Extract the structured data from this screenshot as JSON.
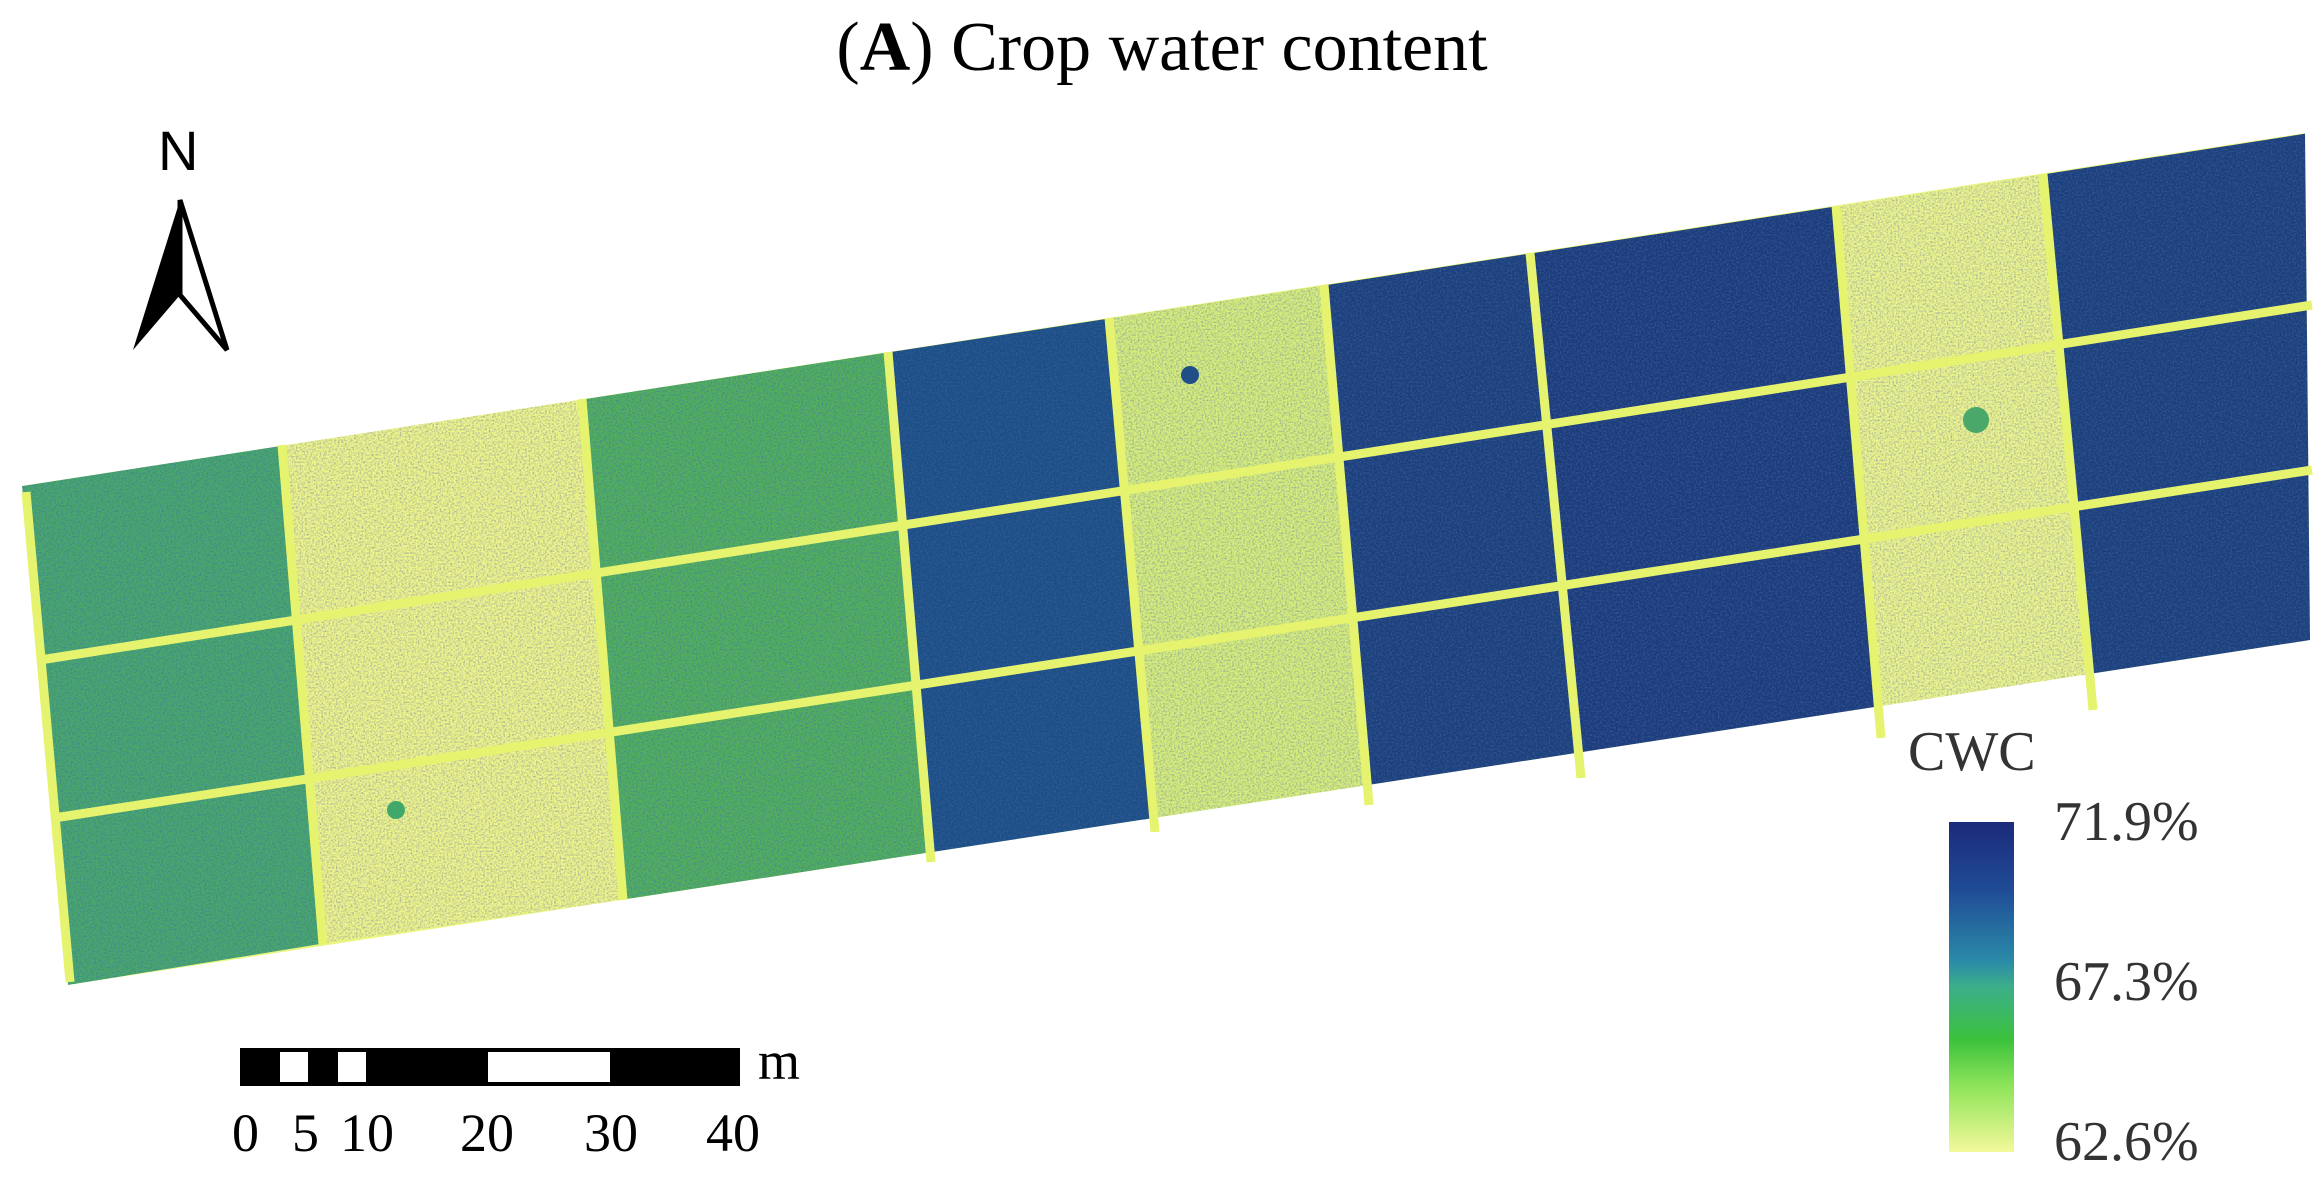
{
  "title": {
    "panel_letter": "A",
    "text": "Crop water content"
  },
  "north_arrow": {
    "label": "N"
  },
  "legend": {
    "title": "CWC",
    "max_label": "71.9%",
    "mid_label": "67.3%",
    "min_label": "62.6%"
  },
  "scale_bar": {
    "unit": "m",
    "labels": [
      "0",
      "5",
      "10",
      "20",
      "30",
      "40"
    ]
  },
  "colors": {
    "high": "#1c2a7a",
    "mid": "#3cae8a",
    "low": "#f3f99a",
    "green": "#3cc23c"
  }
}
